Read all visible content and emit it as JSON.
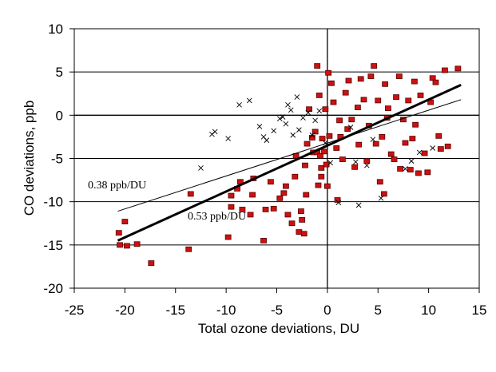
{
  "chart_data": {
    "type": "scatter",
    "xlabel": "Total ozone deviations, DU",
    "ylabel": "CO deviations, ppb",
    "xlim": [
      -25,
      15
    ],
    "ylim": [
      -20,
      10
    ],
    "xticks": [
      -25,
      -20,
      -15,
      -10,
      -5,
      0,
      5,
      10,
      15
    ],
    "yticks": [
      -20,
      -15,
      -10,
      -5,
      0,
      5,
      10
    ],
    "grid": true,
    "colors": {
      "square_marker": "#cc1111",
      "cross_marker": "#000000",
      "line": "#000000"
    },
    "series": [
      {
        "marker": "red-square",
        "points": [
          [
            -20.6,
            -13.6
          ],
          [
            -20.5,
            -15
          ],
          [
            -20,
            -12.3
          ],
          [
            -19.8,
            -15.1
          ],
          [
            -18.8,
            -14.9
          ],
          [
            -17.4,
            -17.1
          ],
          [
            -13.7,
            -15.5
          ],
          [
            -13.5,
            -9.1
          ],
          [
            -9.8,
            -14.1
          ],
          [
            -9.5,
            -9.3
          ],
          [
            -9.5,
            -10.6
          ],
          [
            -8.9,
            -8.5
          ],
          [
            -8.6,
            -7.7
          ],
          [
            -8.4,
            -10.9
          ],
          [
            -7.6,
            -11.5
          ],
          [
            -7.4,
            -9.2
          ],
          [
            -7.3,
            -7.3
          ],
          [
            -6.3,
            -14.5
          ],
          [
            -6.1,
            -10.9
          ],
          [
            -5.6,
            -7.7
          ],
          [
            -5.3,
            -10.8
          ],
          [
            -4.7,
            -9.6
          ],
          [
            -4.3,
            -9
          ],
          [
            -4.1,
            -8.2
          ],
          [
            -3.9,
            -11.5
          ],
          [
            -3.5,
            -12.5
          ],
          [
            -3.2,
            -7.1
          ],
          [
            -3.1,
            -4.7
          ],
          [
            -2.8,
            -13.5
          ],
          [
            -2.6,
            -11.1
          ],
          [
            -2.5,
            -12.1
          ],
          [
            -2.3,
            -13.7
          ],
          [
            -2.2,
            -5.8
          ],
          [
            -2.1,
            -9.2
          ],
          [
            -2,
            -3.3
          ],
          [
            -1.8,
            0.7
          ],
          [
            -1.5,
            -2.6
          ],
          [
            -1.4,
            -4.3
          ],
          [
            -1.2,
            -1.9
          ],
          [
            -1,
            5.7
          ],
          [
            -1,
            -4.3
          ],
          [
            -0.9,
            -8.1
          ],
          [
            -0.8,
            2.3
          ],
          [
            -0.7,
            -4.7
          ],
          [
            -0.6,
            -6.1
          ],
          [
            -0.6,
            -7.1
          ],
          [
            -0.5,
            -2.7
          ],
          [
            -0.3,
            -4.2
          ],
          [
            -0.2,
            0.7
          ],
          [
            -0.1,
            -5.7
          ],
          [
            0,
            -8.2
          ],
          [
            0.1,
            4.9
          ],
          [
            0.2,
            -2.4
          ],
          [
            0.4,
            3.7
          ],
          [
            0.6,
            1.5
          ],
          [
            0.9,
            -3.8
          ],
          [
            1,
            -9.8
          ],
          [
            1.2,
            -0.6
          ],
          [
            1.3,
            -2.5
          ],
          [
            1.5,
            -5.1
          ],
          [
            1.8,
            2.6
          ],
          [
            2,
            -1.6
          ],
          [
            2.1,
            4
          ],
          [
            2.4,
            -0.5
          ],
          [
            2.7,
            -6
          ],
          [
            3,
            0.9
          ],
          [
            3.1,
            -3.4
          ],
          [
            3.3,
            4.2
          ],
          [
            3.6,
            1.8
          ],
          [
            3.9,
            -5.3
          ],
          [
            4.1,
            -1.2
          ],
          [
            4.3,
            4.5
          ],
          [
            4.6,
            5.7
          ],
          [
            4.8,
            -3.3
          ],
          [
            5,
            1.7
          ],
          [
            5.2,
            -7.7
          ],
          [
            5.4,
            -2.5
          ],
          [
            5.6,
            -9.1
          ],
          [
            5.7,
            3.6
          ],
          [
            5.9,
            -0.3
          ],
          [
            6,
            0.8
          ],
          [
            6.3,
            -4.5
          ],
          [
            6.6,
            -5.1
          ],
          [
            6.8,
            2.1
          ],
          [
            7.1,
            4.5
          ],
          [
            7.2,
            -6.2
          ],
          [
            7.5,
            -0.5
          ],
          [
            7.7,
            -3.2
          ],
          [
            8,
            1.7
          ],
          [
            8.2,
            -6.3
          ],
          [
            8.4,
            -2.7
          ],
          [
            8.6,
            3.9
          ],
          [
            8.7,
            -1.1
          ],
          [
            9,
            -6.7
          ],
          [
            9.2,
            2.3
          ],
          [
            9.6,
            -4.4
          ],
          [
            9.9,
            -6.6
          ],
          [
            10.2,
            1.5
          ],
          [
            10.4,
            4.3
          ],
          [
            10.7,
            3.8
          ],
          [
            11,
            -2.4
          ],
          [
            11.2,
            -3.9
          ],
          [
            11.6,
            5.2
          ],
          [
            11.9,
            -3.6
          ],
          [
            12.9,
            5.4
          ]
        ]
      },
      {
        "marker": "black-x",
        "points": [
          [
            -12.5,
            -6.1
          ],
          [
            -11.4,
            -2.2
          ],
          [
            -11.1,
            -1.9
          ],
          [
            -9.8,
            -2.7
          ],
          [
            -8.7,
            1.2
          ],
          [
            -7.7,
            1.7
          ],
          [
            -6.7,
            -1.3
          ],
          [
            -6.3,
            -2.5
          ],
          [
            -6,
            -2.9
          ],
          [
            -5.3,
            -1.8
          ],
          [
            -4.7,
            -0.4
          ],
          [
            -4.4,
            -0.2
          ],
          [
            -4.1,
            -1
          ],
          [
            -3.9,
            1.2
          ],
          [
            -3.6,
            0.6
          ],
          [
            -3.4,
            -2.3
          ],
          [
            -3,
            2.1
          ],
          [
            -2.8,
            -1.7
          ],
          [
            -2.4,
            -0.3
          ],
          [
            -1.9,
            0.3
          ],
          [
            -1.5,
            -2.3
          ],
          [
            -1.2,
            -0.6
          ],
          [
            -0.8,
            0.5
          ],
          [
            -0.2,
            -3.2
          ],
          [
            0.3,
            -5.5
          ],
          [
            1.1,
            -10.1
          ],
          [
            2.3,
            -1.4
          ],
          [
            2.8,
            -5.4
          ],
          [
            3.1,
            -10.4
          ],
          [
            3.9,
            -5.8
          ],
          [
            4.5,
            -2.8
          ],
          [
            5.3,
            -9.6
          ],
          [
            7.7,
            -6.2
          ],
          [
            8.3,
            -5.3
          ],
          [
            9.1,
            -4.3
          ],
          [
            10.4,
            -3.8
          ]
        ]
      }
    ],
    "regression_lines": [
      {
        "label": "0.38 ppb/DU",
        "slope": 0.38,
        "from": [
          -20.7,
          -11.1
        ],
        "to": [
          13.2,
          1.8
        ]
      },
      {
        "label": "0.53 ppb/DU",
        "slope": 0.53,
        "from": [
          -20.7,
          -14.5
        ],
        "to": [
          13.2,
          3.5
        ]
      }
    ]
  }
}
